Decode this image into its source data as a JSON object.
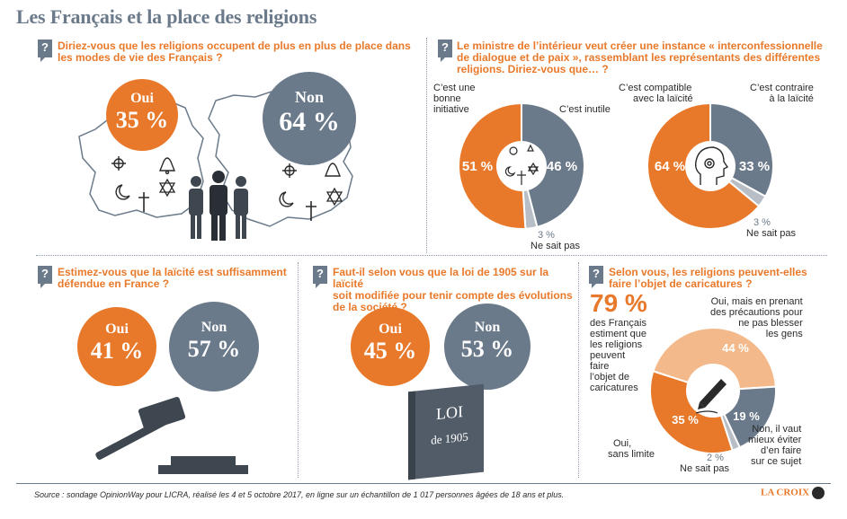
{
  "title": "Les Français et la place des religions",
  "source": "Source : sondage OpinionWay pour LICRA, réalisé les 4 et 5 octobre 2017, en ligne sur un échantillon de 1 017 personnes âgées de 18 ans et plus.",
  "brand": "LA CROIX",
  "q_icon": "?",
  "colors": {
    "orange": "#e9792a",
    "gray": "#6b7a8a",
    "light_gray": "#b8bec6",
    "light_orange": "#f4b98a"
  },
  "panel1": {
    "question": [
      "Diriez-vous que les religions occupent de plus en plus de place dans",
      "les modes de vie des Français ?"
    ],
    "oui_label": "Oui",
    "oui_value": "35 %",
    "non_label": "Non",
    "non_value": "64 %",
    "icons": [
      "om-icon",
      "bell-icon",
      "crescent-star-icon",
      "star-of-david-icon",
      "cross-icon",
      "people-icon",
      "france-map-icon"
    ]
  },
  "panel2": {
    "question": [
      "Le ministre de l’intérieur veut créer une instance « interconfessionnelle",
      "de dialogue et de paix », rassemblant les représentants des différentes",
      "religions. Diriez-vous que… ?"
    ],
    "pie_a": {
      "label_left": [
        "C’est une",
        "bonne",
        "initiative"
      ],
      "label_right": "C’est inutile",
      "label_bottom_value": "3 %",
      "label_bottom": "Ne sait pas",
      "v1": "51 %",
      "v2": "46 %"
    },
    "pie_b": {
      "label_left": [
        "C’est compatible",
        "avec la laïcité"
      ],
      "label_right": [
        "C’est contraire",
        "à la laïcité"
      ],
      "label_bottom_value": "3 %",
      "label_bottom": "Ne sait pas",
      "v1": "64 %",
      "v2": "33 %"
    }
  },
  "panel3": {
    "question": [
      "Estimez-vous que la laïcité est suffisamment",
      "défendue en France ?"
    ],
    "oui_label": "Oui",
    "oui_value": "41 %",
    "non_label": "Non",
    "non_value": "57 %",
    "icons": [
      "gavel-icon"
    ]
  },
  "panel4": {
    "question": [
      "Faut-il selon vous que la loi de 1905 sur la laïcité",
      "soit modifiée pour tenir compte des évolutions",
      "de la société ?"
    ],
    "oui_label": "Oui",
    "oui_value": "45 %",
    "non_label": "Non",
    "non_value": "53 %",
    "book_line1": "LOI",
    "book_line2": "de 1905"
  },
  "panel5": {
    "question": [
      "Selon vous, les religions peuvent-elles",
      "faire l’objet de caricatures ?"
    ],
    "big": "79 %",
    "big_text": [
      "des Français",
      "estiment que",
      "les religions",
      "peuvent",
      "faire",
      "l’objet de",
      "caricatures"
    ],
    "label_top": [
      "Oui, mais en prenant",
      "des précautions pour",
      "ne pas blesser",
      "les gens"
    ],
    "label_left": [
      "Oui,",
      "sans limite"
    ],
    "label_right": [
      "Non, il vaut",
      "mieux éviter",
      "d’en faire",
      "sur ce sujet"
    ],
    "label_bottom_value": "2 %",
    "label_bottom": "Ne sait pas",
    "v_top": "44 %",
    "v_left": "35 %",
    "v_right": "19 %"
  },
  "chart_data": [
    {
      "type": "pie",
      "title": "Diriez-vous que les religions occupent de plus en plus de place dans les modes de vie des Français ?",
      "categories": [
        "Oui",
        "Non"
      ],
      "values": [
        35,
        64
      ]
    },
    {
      "type": "pie",
      "title": "Le ministre de l’intérieur veut créer une instance « interconfessionnelle de dialogue et de paix »… (1)",
      "categories": [
        "C’est une bonne initiative",
        "C’est inutile",
        "Ne sait pas"
      ],
      "values": [
        51,
        46,
        3
      ]
    },
    {
      "type": "pie",
      "title": "Le ministre de l’intérieur veut créer une instance « interconfessionnelle de dialogue et de paix »… (2)",
      "categories": [
        "C’est compatible avec la laïcité",
        "C’est contraire à la laïcité",
        "Ne sait pas"
      ],
      "values": [
        64,
        33,
        3
      ]
    },
    {
      "type": "pie",
      "title": "Estimez-vous que la laïcité est suffisamment défendue en France ?",
      "categories": [
        "Oui",
        "Non"
      ],
      "values": [
        41,
        57
      ]
    },
    {
      "type": "pie",
      "title": "Faut-il selon vous que la loi de 1905 sur la laïcité soit modifiée pour tenir compte des évolutions de la société ?",
      "categories": [
        "Oui",
        "Non"
      ],
      "values": [
        45,
        53
      ]
    },
    {
      "type": "pie",
      "title": "Selon vous, les religions peuvent-elles faire l’objet de caricatures ?",
      "categories": [
        "Oui, mais en prenant des précautions pour ne pas blesser les gens",
        "Non, il vaut mieux éviter d’en faire sur ce sujet",
        "Ne sait pas",
        "Oui, sans limite"
      ],
      "values": [
        44,
        19,
        2,
        35
      ]
    }
  ]
}
